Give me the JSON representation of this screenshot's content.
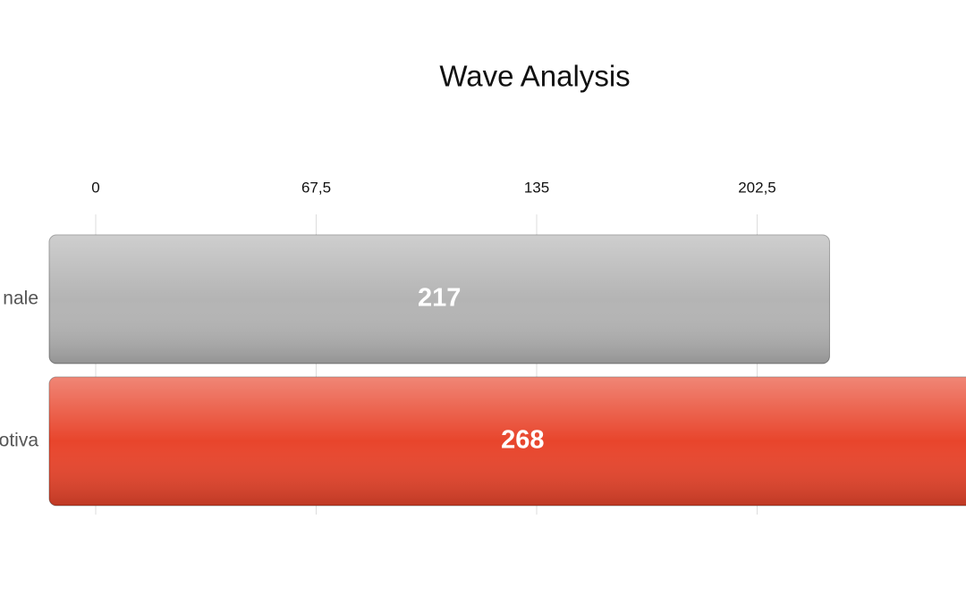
{
  "chart_data": {
    "type": "bar",
    "orientation": "horizontal",
    "title": "Wave Analysis",
    "categories": [
      "nale",
      "otiva"
    ],
    "values": [
      217,
      268
    ],
    "colors": [
      "#b4b4b4",
      "#e8452c"
    ],
    "xlim": [
      0,
      270
    ],
    "xticks": [
      0,
      {
        "value": 67.5,
        "label": "67,5"
      },
      135,
      {
        "value": 202.5,
        "label": "202,5"
      }
    ],
    "grid": true
  }
}
